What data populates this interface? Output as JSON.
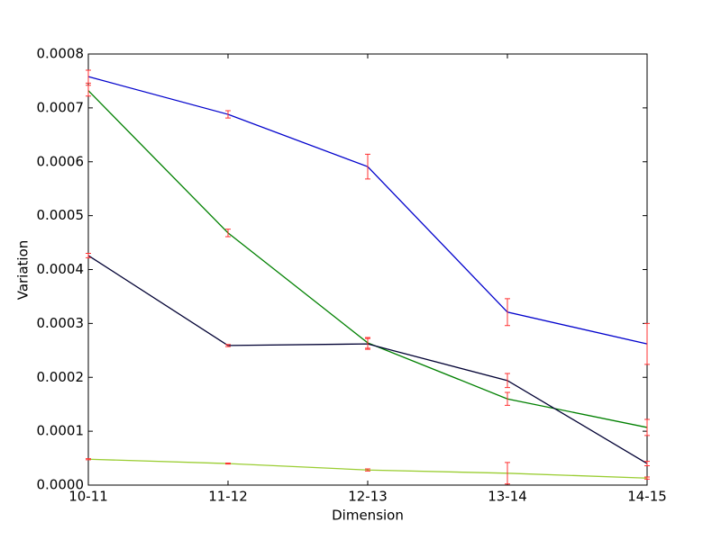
{
  "chart_data": {
    "type": "line",
    "xlabel": "Dimension",
    "ylabel": "Variation",
    "categories": [
      "10-11",
      "11-12",
      "12-13",
      "13-14",
      "14-15"
    ],
    "ylim": [
      0,
      0.0008
    ],
    "yticks": [
      {
        "value": 0,
        "label": "0.0000"
      },
      {
        "value": 0.0001,
        "label": "0.0001"
      },
      {
        "value": 0.0002,
        "label": "0.0002"
      },
      {
        "value": 0.0003,
        "label": "0.0003"
      },
      {
        "value": 0.0004,
        "label": "0.0004"
      },
      {
        "value": 0.0005,
        "label": "0.0005"
      },
      {
        "value": 0.0006,
        "label": "0.0006"
      },
      {
        "value": 0.0007,
        "label": "0.0007"
      },
      {
        "value": 0.0008,
        "label": "0.0008"
      }
    ],
    "error_color": "#ff3030",
    "series": [
      {
        "color": "#0000cc",
        "values": [
          0.000758,
          0.000688,
          0.000591,
          0.000321,
          0.000262
        ],
        "errors": [
          1.2e-05,
          6.7e-06,
          2.3e-05,
          2.5e-05,
          3.8e-05
        ]
      },
      {
        "color": "#008000",
        "values": [
          0.000732,
          0.000468,
          0.000264,
          0.00016,
          0.000107
        ],
        "errors": [
          1e-05,
          7e-06,
          1e-05,
          1.2e-05,
          1.5e-05
        ]
      },
      {
        "color": "#000033",
        "values": [
          0.000426,
          0.000259,
          0.000262,
          0.000194,
          4e-05
        ],
        "errors": [
          4e-06,
          2e-06,
          1e-05,
          1.3e-05,
          4e-06
        ]
      },
      {
        "color": "#9acd32",
        "values": [
          4.8e-05,
          4e-05,
          2.8e-05,
          2.2e-05,
          1.3e-05
        ],
        "errors": [
          1e-06,
          1e-06,
          2e-06,
          2e-05,
          2e-06
        ]
      }
    ]
  }
}
